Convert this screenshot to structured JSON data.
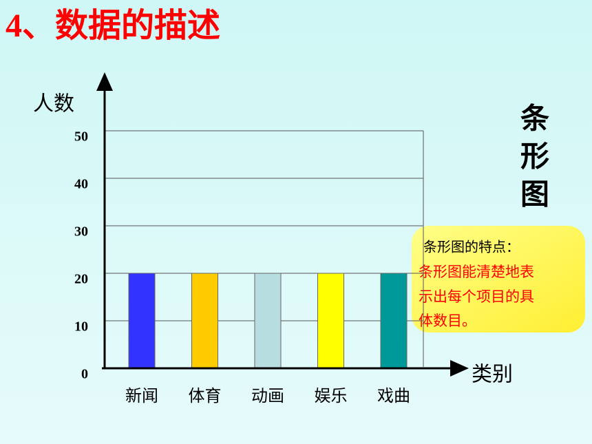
{
  "chart_data": {
    "type": "bar",
    "title": "4、数据的描述",
    "y_label": "人数",
    "x_label": "类别",
    "categories": [
      "新闻",
      "体育",
      "动画",
      "娱乐",
      "戏曲"
    ],
    "values": [
      20,
      20,
      20,
      20,
      20
    ],
    "colors": [
      "#3333ff",
      "#ffcc00",
      "#b8dde0",
      "#ffff00",
      "#009999"
    ],
    "ylim": [
      0,
      50
    ],
    "yticks": [
      0,
      10,
      20,
      30,
      40,
      50
    ],
    "grid": true,
    "side_label": [
      "条",
      "形",
      "图"
    ],
    "note": {
      "title": "条形图的特点：",
      "lines": [
        "条形图能清楚地表",
        "示出每个项目的具",
        "体数目。"
      ]
    }
  }
}
